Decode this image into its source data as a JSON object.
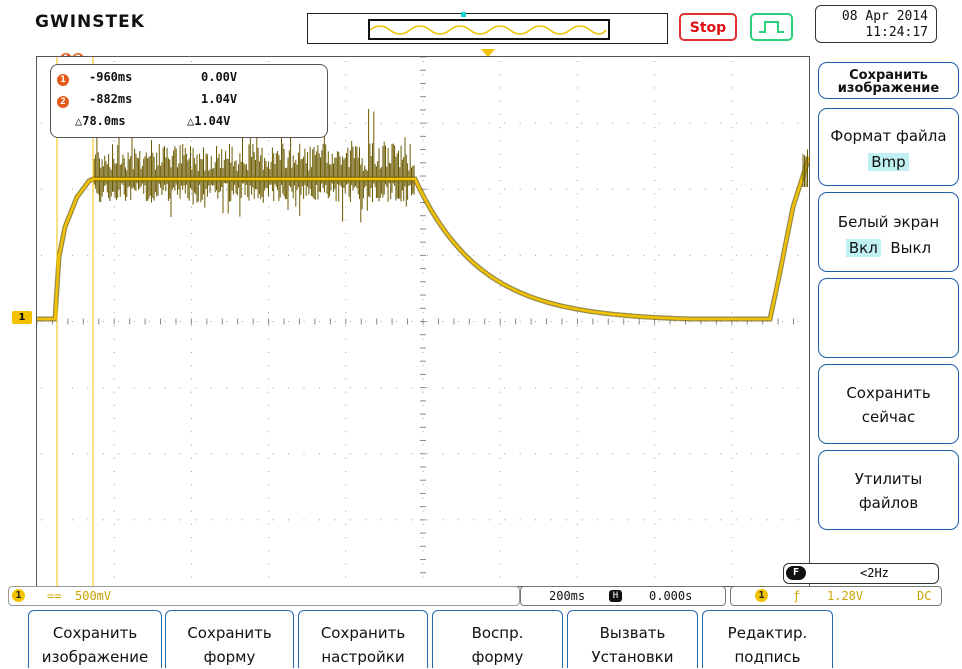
{
  "header": {
    "brand": "GWINSTEK",
    "run_state": "Stop",
    "date": "08 Apr 2014",
    "time": "11:24:17"
  },
  "cursors": {
    "c1_time": "-960ms",
    "c1_volt": "0.00V",
    "c2_time": "-882ms",
    "c2_volt": "1.04V",
    "delta_time": "78.0ms",
    "delta_volt": "1.04V",
    "delta_symbol": "△",
    "c1_label": "1",
    "c2_label": "2"
  },
  "side_menu": {
    "title": "Сохранить изображение",
    "format_label": "Формат файла",
    "format_value": "Bmp",
    "white_label": "Белый экран",
    "white_on": "Вкл",
    "white_off": "Выкл",
    "save_now": "Сохранить сейчас",
    "file_utils": "Утилиты файлов"
  },
  "status": {
    "ch1_num": "1",
    "ch1_coupling": "==",
    "ch1_scale": "500mV",
    "timebase": "200ms",
    "h_icon": "H",
    "h_pos": "0.000s",
    "trig_src": "1",
    "trig_slope": "ƒ",
    "trig_level": "1.28V",
    "trig_coupling": "DC",
    "freq_icon": "F",
    "freq": "<2Hz",
    "ch1_marker": "1"
  },
  "bottom_menu": [
    {
      "line1": "Сохранить",
      "line2": "изображение"
    },
    {
      "line1": "Сохранить",
      "line2": "форму"
    },
    {
      "line1": "Сохранить",
      "line2": "настройки"
    },
    {
      "line1": "Воспр.",
      "line2": "форму"
    },
    {
      "line1": "Вызвать",
      "line2": "Установки"
    },
    {
      "line1": "Редактир.",
      "line2": "подпись"
    }
  ],
  "colors": {
    "trace": "#f2c200",
    "trace_noise": "#6b5a00",
    "menu_border": "#1f5fa8",
    "stop": "#e01010",
    "badge": "#e25b1b"
  }
}
